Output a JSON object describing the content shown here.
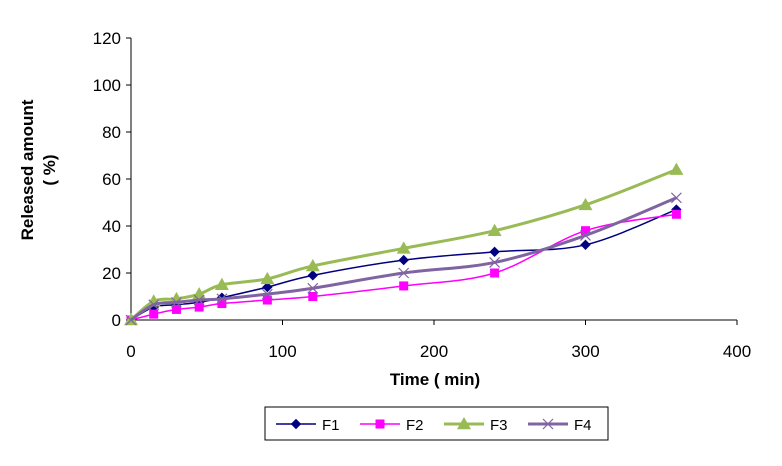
{
  "chart_data": {
    "type": "line",
    "title": "",
    "xlabel": "Time ( min)",
    "ylabel_line1": "Released amount",
    "ylabel_line2": "( %)",
    "xlim": [
      0,
      400
    ],
    "ylim": [
      0,
      120
    ],
    "xticks": [
      "0",
      "100",
      "200",
      "300",
      "400"
    ],
    "yticks": [
      "0",
      "20",
      "40",
      "60",
      "80",
      "100",
      "120"
    ],
    "grid": false,
    "legend_position": "bottom",
    "x": [
      0,
      15,
      30,
      45,
      60,
      90,
      120,
      180,
      240,
      300,
      360
    ],
    "series": [
      {
        "name": "F1",
        "color": "#000080",
        "marker": "diamond",
        "line_width": 1.5,
        "values": [
          0,
          5.5,
          6.5,
          7.5,
          9.5,
          14,
          19,
          25.5,
          29,
          32,
          47
        ]
      },
      {
        "name": "F2",
        "color": "#FF00FF",
        "marker": "square",
        "line_width": 1.5,
        "values": [
          0,
          2.5,
          4.5,
          5.5,
          7,
          8.5,
          10,
          14.5,
          20,
          38,
          45
        ]
      },
      {
        "name": "F3",
        "color": "#99BB55",
        "marker": "triangle",
        "line_width": 3,
        "values": [
          0,
          8,
          9,
          11,
          15,
          17.5,
          23,
          30.5,
          38,
          49,
          64
        ]
      },
      {
        "name": "F4",
        "color": "#8064A2",
        "marker": "x",
        "line_width": 3,
        "values": [
          0,
          6.5,
          7.5,
          8.5,
          9,
          11,
          13.5,
          20,
          24.5,
          36,
          52
        ]
      }
    ]
  }
}
